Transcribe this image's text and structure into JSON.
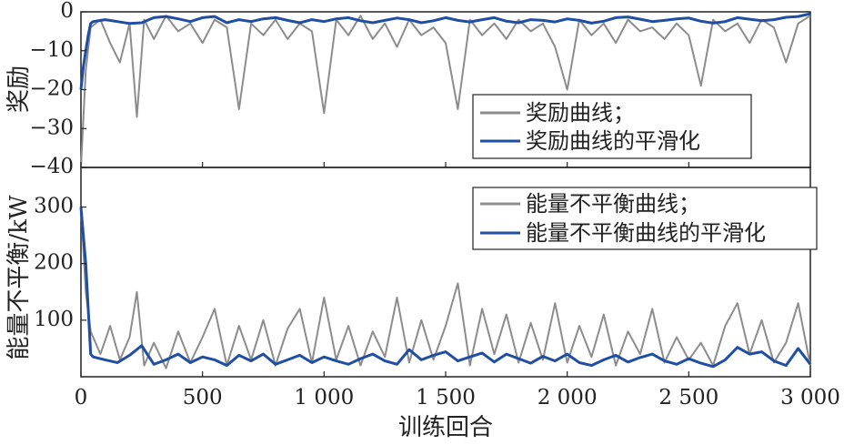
{
  "chart_data": [
    {
      "type": "line",
      "xlabel": "训练回合",
      "ylabel": "奖励",
      "xlim": [
        0,
        3000
      ],
      "ylim": [
        -40,
        0
      ],
      "x_ticks": [
        0,
        500,
        1000,
        1500,
        2000,
        2500,
        3000
      ],
      "x_tick_labels": [
        "0",
        "500",
        "1 000",
        "1 500",
        "2 000",
        "2 500",
        "3 000"
      ],
      "y_ticks": [
        0,
        -10,
        -20,
        -30,
        -40
      ],
      "y_tick_labels": [
        "0",
        "−10",
        "−20",
        "−30",
        "−40"
      ],
      "legend_position": "lower-right",
      "series": [
        {
          "name": "奖励曲线；",
          "color": "#8c8c8c",
          "x": [
            0,
            20,
            40,
            80,
            120,
            160,
            200,
            230,
            260,
            300,
            350,
            400,
            450,
            500,
            550,
            600,
            650,
            700,
            750,
            800,
            850,
            900,
            950,
            1000,
            1050,
            1100,
            1150,
            1200,
            1250,
            1300,
            1350,
            1400,
            1450,
            1500,
            1550,
            1600,
            1650,
            1700,
            1750,
            1800,
            1850,
            1900,
            1950,
            2000,
            2050,
            2100,
            2150,
            2200,
            2250,
            2300,
            2350,
            2400,
            2450,
            2500,
            2550,
            2600,
            2650,
            2700,
            2750,
            2800,
            2850,
            2900,
            2950,
            3000
          ],
          "y": [
            -40,
            -15,
            -4,
            -2,
            -8,
            -13,
            -3,
            -27,
            -2,
            -7,
            -1,
            -5,
            -3,
            -8,
            -2,
            -4,
            -25,
            -3,
            -6,
            -2,
            -7,
            -3,
            -5,
            -26,
            -2,
            -6,
            -1,
            -7,
            -3,
            -9,
            -2,
            -6,
            -4,
            -8,
            -25,
            -2,
            -6,
            -3,
            -7,
            -2,
            -5,
            -3,
            -9,
            -20,
            -2,
            -6,
            -3,
            -8,
            -2,
            -5,
            -4,
            -7,
            -3,
            -6,
            -19,
            -2,
            -5,
            -3,
            -8,
            -2,
            -4,
            -13,
            -3,
            -1
          ]
        },
        {
          "name": "奖励曲线的平滑化",
          "color": "#1f4ea3",
          "x": [
            0,
            10,
            20,
            30,
            40,
            50,
            100,
            150,
            200,
            250,
            300,
            350,
            400,
            450,
            500,
            550,
            600,
            650,
            700,
            750,
            800,
            850,
            900,
            950,
            1000,
            1050,
            1100,
            1150,
            1200,
            1250,
            1300,
            1350,
            1400,
            1450,
            1500,
            1550,
            1600,
            1650,
            1700,
            1750,
            1800,
            1850,
            1900,
            1950,
            2000,
            2050,
            2100,
            2150,
            2200,
            2250,
            2300,
            2350,
            2400,
            2450,
            2500,
            2550,
            2600,
            2650,
            2700,
            2750,
            2800,
            2850,
            2900,
            2950,
            3000
          ],
          "y": [
            -20,
            -14,
            -10,
            -6,
            -3,
            -2.5,
            -2,
            -2.5,
            -3,
            -2.8,
            -1.5,
            -1.2,
            -1.8,
            -2.5,
            -1.5,
            -1.2,
            -2.8,
            -2,
            -2.5,
            -1.8,
            -1.5,
            -2.2,
            -2.8,
            -2,
            -2.5,
            -1.8,
            -1.5,
            -2.3,
            -2.8,
            -2.2,
            -1.6,
            -2,
            -2.8,
            -2.3,
            -1.5,
            -2.2,
            -2.6,
            -2,
            -1.5,
            -2.4,
            -2.8,
            -2,
            -2.2,
            -2.6,
            -1.8,
            -2.2,
            -2.9,
            -2.4,
            -1.5,
            -1.3,
            -1.9,
            -2.5,
            -2.2,
            -1.8,
            -1.6,
            -2.4,
            -2.9,
            -2.5,
            -1.5,
            -1.9,
            -2.3,
            -2,
            -1.4,
            -1.2,
            -0.5
          ]
        }
      ]
    },
    {
      "type": "line",
      "xlabel": "训练回合",
      "ylabel": "能量不平衡/kW",
      "xlim": [
        0,
        3000
      ],
      "ylim": [
        0,
        370
      ],
      "x_ticks": [
        0,
        500,
        1000,
        1500,
        2000,
        2500,
        3000
      ],
      "x_tick_labels": [
        "0",
        "500",
        "1 000",
        "1 500",
        "2 000",
        "2 500",
        "3 000"
      ],
      "y_ticks": [
        100,
        200,
        300
      ],
      "y_tick_labels": [
        "100",
        "200",
        "300"
      ],
      "legend_position": "top-right",
      "series": [
        {
          "name": "能量不平衡曲线；",
          "color": "#8c8c8c",
          "x": [
            0,
            20,
            40,
            80,
            120,
            160,
            200,
            230,
            260,
            300,
            350,
            400,
            450,
            500,
            550,
            600,
            650,
            700,
            750,
            800,
            850,
            900,
            950,
            1000,
            1050,
            1100,
            1150,
            1200,
            1250,
            1300,
            1350,
            1400,
            1450,
            1500,
            1550,
            1600,
            1650,
            1700,
            1750,
            1800,
            1850,
            1900,
            1950,
            2000,
            2050,
            2100,
            2150,
            2200,
            2250,
            2300,
            2350,
            2400,
            2450,
            2500,
            2550,
            2600,
            2650,
            2700,
            2750,
            2800,
            2850,
            2900,
            2950,
            3000
          ],
          "y": [
            300,
            150,
            80,
            40,
            90,
            30,
            70,
            150,
            20,
            60,
            15,
            80,
            25,
            70,
            120,
            20,
            90,
            30,
            100,
            20,
            85,
            120,
            25,
            140,
            30,
            90,
            20,
            80,
            35,
            140,
            25,
            100,
            30,
            90,
            165,
            20,
            120,
            40,
            110,
            25,
            95,
            30,
            130,
            25,
            90,
            35,
            110,
            20,
            80,
            40,
            120,
            25,
            70,
            30,
            60,
            20,
            90,
            130,
            40,
            100,
            25,
            60,
            130,
            20
          ]
        },
        {
          "name": "能量不平衡曲线的平滑化",
          "color": "#1f4ea3",
          "x": [
            0,
            20,
            40,
            50,
            100,
            150,
            200,
            250,
            300,
            350,
            400,
            450,
            500,
            550,
            600,
            650,
            700,
            750,
            800,
            850,
            900,
            950,
            1000,
            1050,
            1100,
            1150,
            1200,
            1250,
            1300,
            1350,
            1400,
            1450,
            1500,
            1550,
            1600,
            1650,
            1700,
            1750,
            1800,
            1850,
            1900,
            1950,
            2000,
            2050,
            2100,
            2150,
            2200,
            2250,
            2300,
            2350,
            2400,
            2450,
            2500,
            2550,
            2600,
            2650,
            2700,
            2750,
            2800,
            2850,
            2900,
            2950,
            3000
          ],
          "y": [
            300,
            200,
            40,
            35,
            30,
            25,
            38,
            55,
            22,
            30,
            40,
            25,
            35,
            30,
            20,
            38,
            28,
            40,
            22,
            30,
            38,
            25,
            35,
            28,
            22,
            32,
            40,
            28,
            22,
            48,
            30,
            38,
            44,
            28,
            35,
            42,
            26,
            40,
            32,
            24,
            36,
            28,
            40,
            25,
            20,
            30,
            38,
            26,
            34,
            40,
            28,
            22,
            32,
            24,
            18,
            30,
            52,
            40,
            44,
            28,
            20,
            50,
            22
          ]
        }
      ]
    }
  ]
}
